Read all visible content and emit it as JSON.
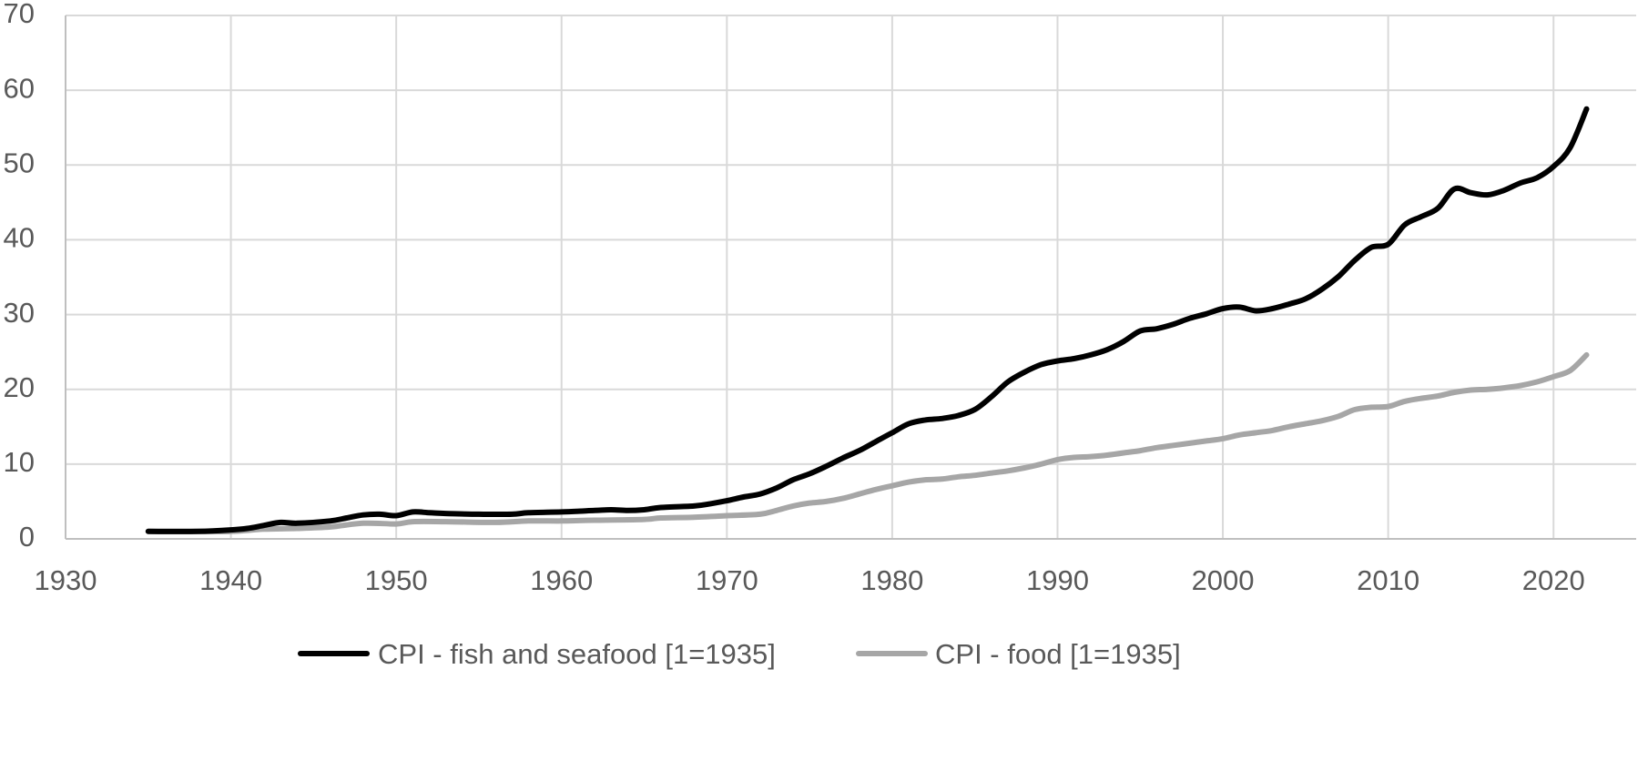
{
  "chart_data": {
    "type": "line",
    "title": "",
    "xlabel": "",
    "ylabel": "",
    "xlim": [
      1930,
      2025
    ],
    "ylim": [
      0,
      70
    ],
    "x_ticks": [
      1930,
      1940,
      1950,
      1960,
      1970,
      1980,
      1990,
      2000,
      2010,
      2020
    ],
    "y_ticks": [
      0,
      10,
      20,
      30,
      40,
      50,
      60,
      70
    ],
    "grid": true,
    "legend_position": "bottom",
    "series": [
      {
        "name": "CPI - fish and seafood [1=1935]",
        "color": "#000000",
        "points": [
          [
            1935,
            1.0
          ],
          [
            1938,
            1.0
          ],
          [
            1940,
            1.2
          ],
          [
            1941,
            1.4
          ],
          [
            1942,
            1.8
          ],
          [
            1943,
            2.2
          ],
          [
            1944,
            2.1
          ],
          [
            1946,
            2.4
          ],
          [
            1947,
            2.8
          ],
          [
            1948,
            3.2
          ],
          [
            1949,
            3.3
          ],
          [
            1950,
            3.1
          ],
          [
            1951,
            3.6
          ],
          [
            1952,
            3.5
          ],
          [
            1953,
            3.4
          ],
          [
            1955,
            3.3
          ],
          [
            1957,
            3.3
          ],
          [
            1958,
            3.5
          ],
          [
            1960,
            3.6
          ],
          [
            1962,
            3.8
          ],
          [
            1963,
            3.9
          ],
          [
            1964,
            3.8
          ],
          [
            1965,
            3.9
          ],
          [
            1966,
            4.2
          ],
          [
            1968,
            4.4
          ],
          [
            1969,
            4.7
          ],
          [
            1970,
            5.1
          ],
          [
            1971,
            5.6
          ],
          [
            1972,
            6.0
          ],
          [
            1973,
            6.8
          ],
          [
            1974,
            7.9
          ],
          [
            1975,
            8.7
          ],
          [
            1976,
            9.7
          ],
          [
            1977,
            10.8
          ],
          [
            1978,
            11.8
          ],
          [
            1979,
            13.0
          ],
          [
            1980,
            14.2
          ],
          [
            1981,
            15.4
          ],
          [
            1982,
            15.9
          ],
          [
            1983,
            16.1
          ],
          [
            1984,
            16.5
          ],
          [
            1985,
            17.3
          ],
          [
            1986,
            19.0
          ],
          [
            1987,
            21.0
          ],
          [
            1988,
            22.3
          ],
          [
            1989,
            23.3
          ],
          [
            1990,
            23.8
          ],
          [
            1991,
            24.1
          ],
          [
            1992,
            24.6
          ],
          [
            1993,
            25.3
          ],
          [
            1994,
            26.4
          ],
          [
            1995,
            27.8
          ],
          [
            1996,
            28.1
          ],
          [
            1997,
            28.7
          ],
          [
            1998,
            29.5
          ],
          [
            1999,
            30.1
          ],
          [
            2000,
            30.8
          ],
          [
            2001,
            31.0
          ],
          [
            2002,
            30.5
          ],
          [
            2003,
            30.8
          ],
          [
            2004,
            31.4
          ],
          [
            2005,
            32.1
          ],
          [
            2006,
            33.4
          ],
          [
            2007,
            35.1
          ],
          [
            2008,
            37.3
          ],
          [
            2009,
            39.0
          ],
          [
            2010,
            39.4
          ],
          [
            2011,
            42.0
          ],
          [
            2012,
            43.1
          ],
          [
            2013,
            44.2
          ],
          [
            2014,
            46.8
          ],
          [
            2015,
            46.3
          ],
          [
            2016,
            46.0
          ],
          [
            2017,
            46.6
          ],
          [
            2018,
            47.6
          ],
          [
            2019,
            48.3
          ],
          [
            2020,
            49.8
          ],
          [
            2021,
            52.3
          ],
          [
            2022,
            57.5
          ]
        ]
      },
      {
        "name": "CPI - food [1=1935]",
        "color": "#a6a6a6",
        "points": [
          [
            1935,
            1.0
          ],
          [
            1938,
            1.0
          ],
          [
            1940,
            1.0
          ],
          [
            1942,
            1.3
          ],
          [
            1944,
            1.4
          ],
          [
            1946,
            1.6
          ],
          [
            1948,
            2.1
          ],
          [
            1950,
            2.0
          ],
          [
            1951,
            2.3
          ],
          [
            1953,
            2.3
          ],
          [
            1956,
            2.2
          ],
          [
            1958,
            2.4
          ],
          [
            1960,
            2.4
          ],
          [
            1962,
            2.5
          ],
          [
            1965,
            2.6
          ],
          [
            1966,
            2.8
          ],
          [
            1968,
            2.9
          ],
          [
            1970,
            3.1
          ],
          [
            1972,
            3.3
          ],
          [
            1973,
            3.8
          ],
          [
            1974,
            4.4
          ],
          [
            1975,
            4.8
          ],
          [
            1976,
            5.0
          ],
          [
            1977,
            5.4
          ],
          [
            1978,
            6.0
          ],
          [
            1979,
            6.6
          ],
          [
            1980,
            7.1
          ],
          [
            1981,
            7.6
          ],
          [
            1982,
            7.9
          ],
          [
            1983,
            8.0
          ],
          [
            1984,
            8.3
          ],
          [
            1985,
            8.5
          ],
          [
            1986,
            8.8
          ],
          [
            1987,
            9.1
          ],
          [
            1988,
            9.5
          ],
          [
            1989,
            10.0
          ],
          [
            1990,
            10.6
          ],
          [
            1991,
            10.9
          ],
          [
            1992,
            11.0
          ],
          [
            1993,
            11.2
          ],
          [
            1994,
            11.5
          ],
          [
            1995,
            11.8
          ],
          [
            1996,
            12.2
          ],
          [
            1997,
            12.5
          ],
          [
            1998,
            12.8
          ],
          [
            1999,
            13.1
          ],
          [
            2000,
            13.4
          ],
          [
            2001,
            13.9
          ],
          [
            2002,
            14.2
          ],
          [
            2003,
            14.5
          ],
          [
            2004,
            15.0
          ],
          [
            2005,
            15.4
          ],
          [
            2006,
            15.8
          ],
          [
            2007,
            16.4
          ],
          [
            2008,
            17.3
          ],
          [
            2009,
            17.6
          ],
          [
            2010,
            17.7
          ],
          [
            2011,
            18.4
          ],
          [
            2012,
            18.8
          ],
          [
            2013,
            19.1
          ],
          [
            2014,
            19.6
          ],
          [
            2015,
            19.9
          ],
          [
            2016,
            20.0
          ],
          [
            2017,
            20.2
          ],
          [
            2018,
            20.5
          ],
          [
            2019,
            21.0
          ],
          [
            2020,
            21.7
          ],
          [
            2021,
            22.5
          ],
          [
            2022,
            24.6
          ]
        ]
      }
    ]
  }
}
